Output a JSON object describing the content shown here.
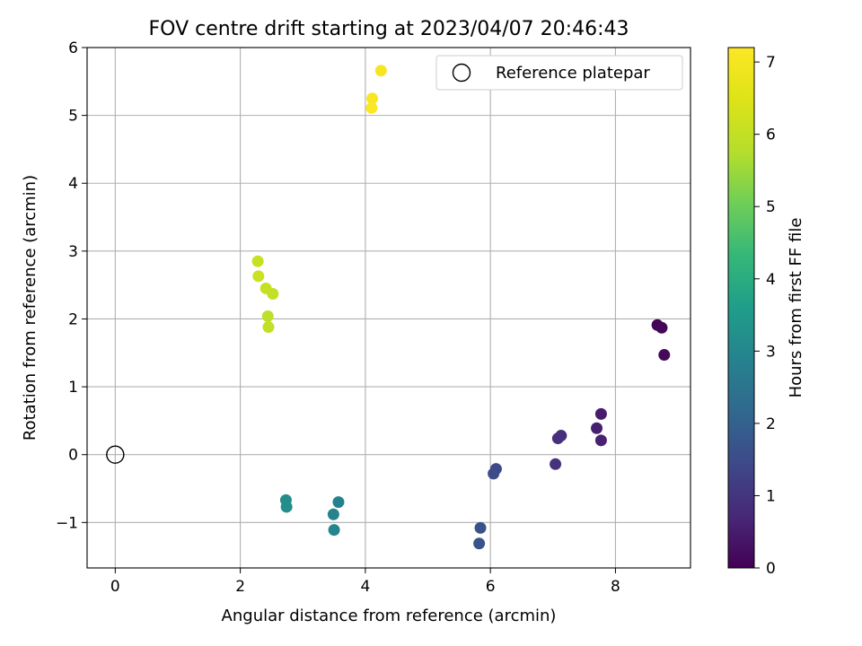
{
  "chart_data": {
    "type": "scatter",
    "title": "FOV centre drift starting at 2023/04/07 20:46:43",
    "xlabel": "Angular distance from reference (arcmin)",
    "ylabel": "Rotation from reference (arcmin)",
    "xlim": [
      -0.45,
      9.2
    ],
    "ylim": [
      -1.67,
      6.0
    ],
    "xticks": [
      0,
      2,
      4,
      6,
      8
    ],
    "yticks": [
      -1,
      0,
      1,
      2,
      3,
      4,
      5,
      6
    ],
    "grid": true,
    "legend": {
      "placement": "top-right",
      "entries": [
        "Reference platepar"
      ]
    },
    "reference_point": {
      "x": 0,
      "y": 0,
      "label": "Reference platepar"
    },
    "colorbar": {
      "label": "Hours from first FF file",
      "range": [
        0,
        7.2
      ],
      "ticks": [
        0,
        1,
        2,
        3,
        4,
        5,
        6,
        7
      ],
      "colormap": "viridis"
    },
    "points": [
      {
        "x": 8.67,
        "y": 1.91,
        "c": 0.05
      },
      {
        "x": 8.74,
        "y": 1.87,
        "c": 0.1
      },
      {
        "x": 8.78,
        "y": 1.47,
        "c": 0.15
      },
      {
        "x": 7.77,
        "y": 0.6,
        "c": 0.5
      },
      {
        "x": 7.7,
        "y": 0.39,
        "c": 0.55
      },
      {
        "x": 7.77,
        "y": 0.21,
        "c": 0.6
      },
      {
        "x": 7.13,
        "y": 0.28,
        "c": 0.85
      },
      {
        "x": 7.08,
        "y": 0.24,
        "c": 0.9
      },
      {
        "x": 7.04,
        "y": -0.14,
        "c": 0.95
      },
      {
        "x": 6.09,
        "y": -0.21,
        "c": 1.45
      },
      {
        "x": 6.05,
        "y": -0.28,
        "c": 1.5
      },
      {
        "x": 5.84,
        "y": -1.08,
        "c": 1.65
      },
      {
        "x": 5.82,
        "y": -1.31,
        "c": 1.7
      },
      {
        "x": 3.57,
        "y": -0.7,
        "c": 2.85
      },
      {
        "x": 3.49,
        "y": -0.88,
        "c": 2.9
      },
      {
        "x": 3.5,
        "y": -1.11,
        "c": 2.95
      },
      {
        "x": 2.73,
        "y": -0.67,
        "c": 3.15
      },
      {
        "x": 2.74,
        "y": -0.77,
        "c": 3.2
      },
      {
        "x": 2.44,
        "y": 2.04,
        "c": 5.9
      },
      {
        "x": 2.45,
        "y": 1.88,
        "c": 5.95
      },
      {
        "x": 2.52,
        "y": 2.37,
        "c": 6.0
      },
      {
        "x": 2.41,
        "y": 2.45,
        "c": 6.05
      },
      {
        "x": 2.28,
        "y": 2.85,
        "c": 6.1
      },
      {
        "x": 2.29,
        "y": 2.63,
        "c": 6.15
      },
      {
        "x": 4.25,
        "y": 5.66,
        "c": 7.05
      },
      {
        "x": 4.11,
        "y": 5.25,
        "c": 7.1
      },
      {
        "x": 4.1,
        "y": 5.11,
        "c": 7.15
      }
    ]
  }
}
